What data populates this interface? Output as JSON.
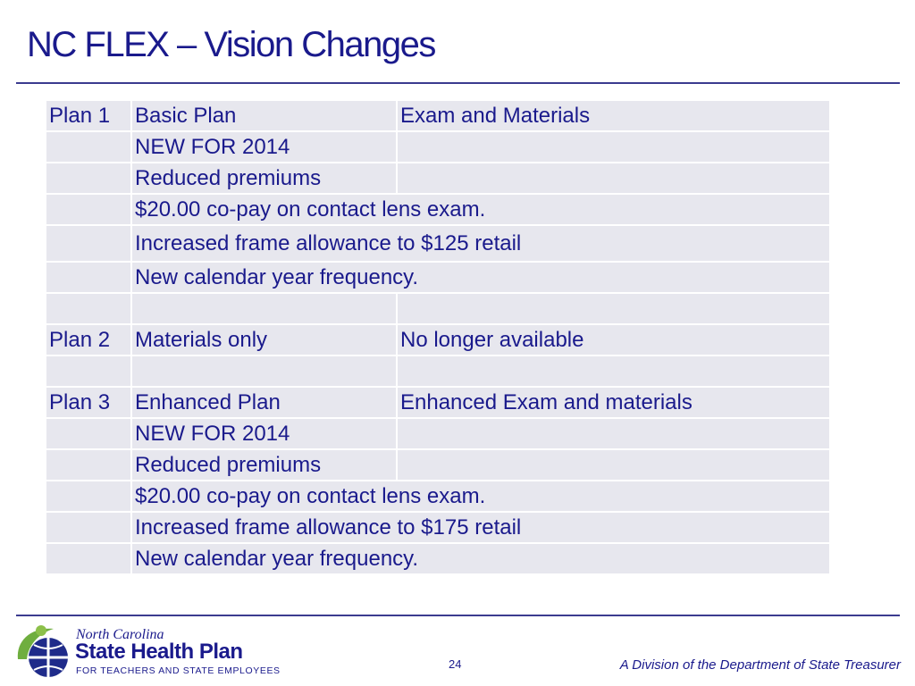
{
  "slide": {
    "title": "NC FLEX – Vision Changes",
    "page_number": "24",
    "division_text": "A Division of the Department of State Treasurer"
  },
  "logo": {
    "line1": "North Carolina",
    "line2": "State Health Plan",
    "line3": "FOR TEACHERS AND STATE EMPLOYEES"
  },
  "table": {
    "rows": [
      [
        "Plan 1",
        "Basic Plan",
        "Exam and Materials"
      ],
      [
        "",
        "NEW FOR 2014",
        ""
      ],
      [
        "",
        "Reduced premiums",
        ""
      ],
      [
        "",
        "$20.00 co-pay on contact lens exam.",
        ""
      ],
      [
        "",
        "Increased frame allowance to $125 retail",
        ""
      ],
      [
        "",
        "New calendar year frequency.",
        ""
      ],
      [
        "",
        "",
        ""
      ],
      [
        "Plan 2",
        "Materials only",
        "No longer available"
      ],
      [
        "",
        "",
        ""
      ],
      [
        "Plan 3",
        "Enhanced Plan",
        "Enhanced Exam and materials"
      ],
      [
        "",
        "NEW FOR 2014",
        ""
      ],
      [
        "",
        "Reduced premiums",
        ""
      ],
      [
        "",
        "$20.00 co-pay on contact lens exam.",
        ""
      ],
      [
        "",
        "Increased frame allowance to $175 retail",
        ""
      ],
      [
        "",
        "New calendar year frequency.",
        ""
      ]
    ]
  },
  "colors": {
    "title": "#1a1a8c",
    "cell_background": "#e7e7ee",
    "rule": "#3b3b8f"
  }
}
